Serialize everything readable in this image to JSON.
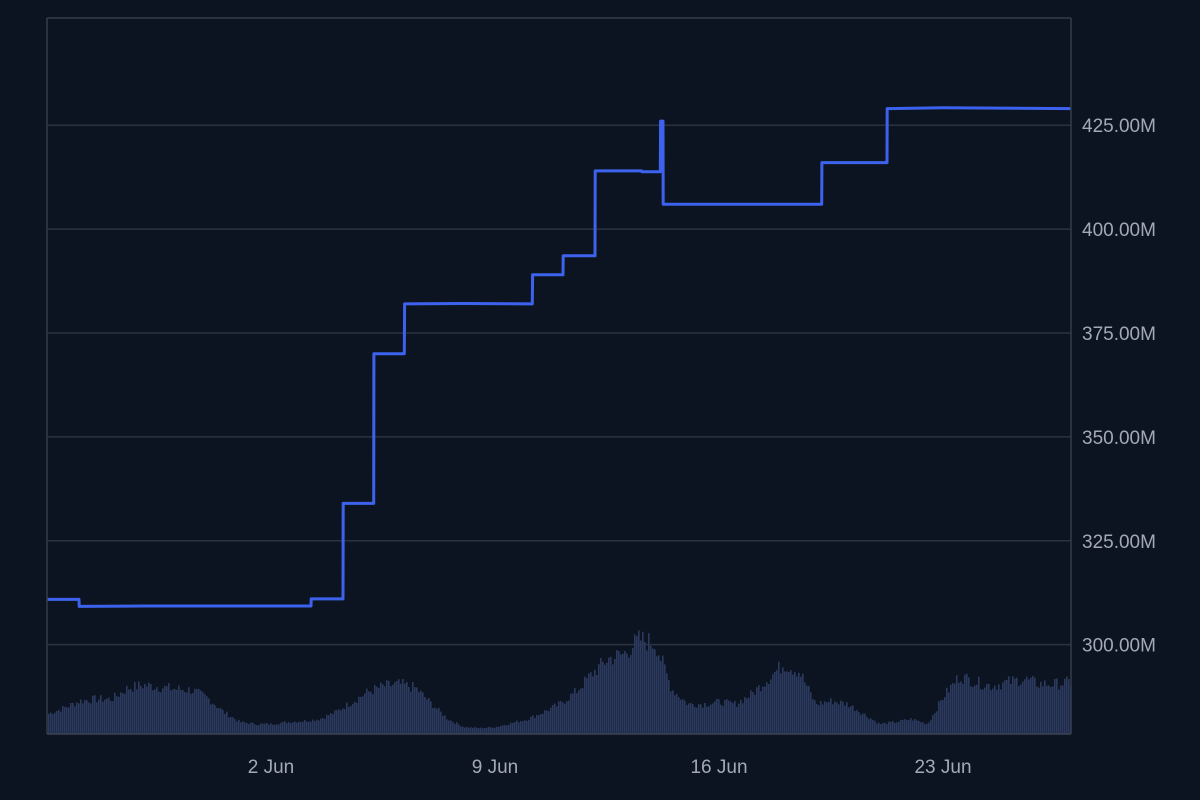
{
  "chart_data": {
    "type": "line",
    "title": "",
    "xlabel": "",
    "ylabel": "",
    "x_range": [
      "2024-05-26T00:00",
      "2024-06-27T00:00"
    ],
    "ylim": [
      278.5,
      450.8
    ],
    "x_ticks": [
      {
        "date": "2024-06-02",
        "label": "2 Jun"
      },
      {
        "date": "2024-06-09",
        "label": "9 Jun"
      },
      {
        "date": "2024-06-16",
        "label": "16 Jun"
      },
      {
        "date": "2024-06-23",
        "label": "23 Jun"
      }
    ],
    "y_ticks": [
      {
        "value": 300,
        "label": "300.00M"
      },
      {
        "value": 325,
        "label": "325.00M"
      },
      {
        "value": 350,
        "label": "350.00M"
      },
      {
        "value": 375,
        "label": "375.00M"
      },
      {
        "value": 400,
        "label": "400.00M"
      },
      {
        "value": 425,
        "label": "425.00M"
      }
    ],
    "grid": true,
    "series": [
      {
        "color": "#3d63ee",
        "unit": "M",
        "x": [
          "2024-05-26T00:00",
          "2024-05-27T00:00",
          "2024-05-27T00:10",
          "2024-05-29T00:00",
          "2024-06-01T00:00",
          "2024-06-03T06:00",
          "2024-06-03T06:10",
          "2024-06-04T06:00",
          "2024-06-04T06:10",
          "2024-06-05T05:00",
          "2024-06-05T05:10",
          "2024-06-06T04:00",
          "2024-06-06T04:10",
          "2024-06-08T00:00",
          "2024-06-10T04:00",
          "2024-06-10T04:10",
          "2024-06-11T03:00",
          "2024-06-11T03:10",
          "2024-06-12T03:00",
          "2024-06-12T03:10",
          "2024-06-13T14:00",
          "2024-06-13T14:10",
          "2024-06-14T04:00",
          "2024-06-14T04:10",
          "2024-06-14T06:00",
          "2024-06-14T06:10",
          "2024-06-18T00:00",
          "2024-06-19T05:00",
          "2024-06-19T05:10",
          "2024-06-21T06:00",
          "2024-06-21T06:10",
          "2024-06-23T00:00",
          "2024-06-27T00:00"
        ],
        "y": [
          310.9,
          310.9,
          309.2,
          309.3,
          309.3,
          309.3,
          311.0,
          311.0,
          334.0,
          334.0,
          370.0,
          370.0,
          382.0,
          382.1,
          382.0,
          389.0,
          389.0,
          393.6,
          393.6,
          414.0,
          414.0,
          413.8,
          413.8,
          426.0,
          426.0,
          406.0,
          406.0,
          406.0,
          416.0,
          416.0,
          429.0,
          429.2,
          429.0
        ]
      }
    ],
    "volume": {
      "color": "#2c3a5f",
      "x": [
        "2024-05-26T00:00",
        "2024-05-26T12:00",
        "2024-05-27T00:00",
        "2024-05-27T12:00",
        "2024-05-28T00:00",
        "2024-05-28T12:00",
        "2024-05-29T00:00",
        "2024-05-29T12:00",
        "2024-05-30T00:00",
        "2024-05-30T12:00",
        "2024-05-31T00:00",
        "2024-05-31T12:00",
        "2024-06-01T00:00",
        "2024-06-01T12:00",
        "2024-06-02T00:00",
        "2024-06-02T12:00",
        "2024-06-03T00:00",
        "2024-06-03T12:00",
        "2024-06-04T00:00",
        "2024-06-04T12:00",
        "2024-06-05T00:00",
        "2024-06-05T12:00",
        "2024-06-06T00:00",
        "2024-06-06T12:00",
        "2024-06-07T00:00",
        "2024-06-07T12:00",
        "2024-06-08T00:00",
        "2024-06-08T12:00",
        "2024-06-09T00:00",
        "2024-06-09T12:00",
        "2024-06-10T00:00",
        "2024-06-10T12:00",
        "2024-06-11T00:00",
        "2024-06-11T12:00",
        "2024-06-12T00:00",
        "2024-06-12T12:00",
        "2024-06-13T00:00",
        "2024-06-13T12:00",
        "2024-06-14T00:00",
        "2024-06-14T12:00",
        "2024-06-15T00:00",
        "2024-06-15T12:00",
        "2024-06-16T00:00",
        "2024-06-16T12:00",
        "2024-06-17T00:00",
        "2024-06-17T12:00",
        "2024-06-18T00:00",
        "2024-06-18T12:00",
        "2024-06-19T00:00",
        "2024-06-19T12:00",
        "2024-06-20T00:00",
        "2024-06-20T12:00",
        "2024-06-21T00:00",
        "2024-06-21T12:00",
        "2024-06-22T00:00",
        "2024-06-22T12:00",
        "2024-06-23T00:00",
        "2024-06-23T12:00",
        "2024-06-24T00:00",
        "2024-06-24T12:00",
        "2024-06-25T00:00",
        "2024-06-25T12:00",
        "2024-06-26T00:00",
        "2024-06-26T12:00",
        "2024-06-27T00:00"
      ],
      "values": [
        0.2,
        0.26,
        0.33,
        0.35,
        0.35,
        0.46,
        0.49,
        0.47,
        0.45,
        0.44,
        0.36,
        0.22,
        0.12,
        0.1,
        0.1,
        0.12,
        0.13,
        0.15,
        0.22,
        0.32,
        0.42,
        0.48,
        0.5,
        0.46,
        0.3,
        0.15,
        0.07,
        0.06,
        0.07,
        0.11,
        0.15,
        0.22,
        0.3,
        0.42,
        0.6,
        0.75,
        0.8,
        0.95,
        0.9,
        0.45,
        0.3,
        0.3,
        0.32,
        0.3,
        0.4,
        0.55,
        0.7,
        0.62,
        0.3,
        0.33,
        0.3,
        0.2,
        0.1,
        0.12,
        0.15,
        0.1,
        0.38,
        0.58,
        0.52,
        0.48,
        0.52,
        0.55,
        0.5,
        0.5,
        0.52
      ]
    }
  }
}
